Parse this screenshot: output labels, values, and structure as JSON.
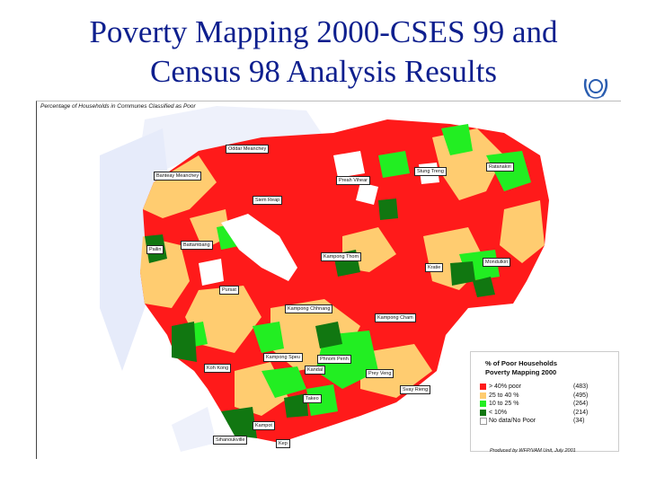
{
  "title_line1": "Poverty Mapping 2000-CSES 99 and",
  "title_line2": "Census 98 Analysis Results",
  "logo_icon": "wreath-emblem-icon",
  "map": {
    "caption": "Percentage of Households in Communes Classified as Poor",
    "province_labels": [
      "Oddar Meanchey",
      "Banteay Meanchey",
      "Siem Reap",
      "Preah Vihear",
      "Stung Treng",
      "Ratanakiri",
      "Pailin",
      "Battambang",
      "Kampong Thom",
      "Kratie",
      "Mondulkiri",
      "Pursat",
      "Kampong Chhnang",
      "Kampong Cham",
      "Koh Kong",
      "Kampong Speu",
      "Phnom Penh",
      "Prey Veng",
      "Kandal",
      "Svay Rieng",
      "Takeo",
      "Kampot",
      "Sihanoukville",
      "Kep"
    ],
    "credit": "Produced by WFP/VAM Unit, July 2001"
  },
  "legend": {
    "title_line1": "% of Poor Households",
    "title_line2": "Poverty Mapping 2000",
    "items": [
      {
        "label": "> 40% poor",
        "count": "(483)",
        "color": "#ff1a1a"
      },
      {
        "label": "25 to 40 %",
        "count": "(495)",
        "color": "#ffcc70"
      },
      {
        "label": "10 to 25 %",
        "count": "(264)",
        "color": "#22ee22"
      },
      {
        "label": "< 10%",
        "count": "(214)",
        "color": "#117711"
      },
      {
        "label": "No data/No Poor",
        "count": "(34)",
        "color": "#ffffff"
      }
    ]
  }
}
